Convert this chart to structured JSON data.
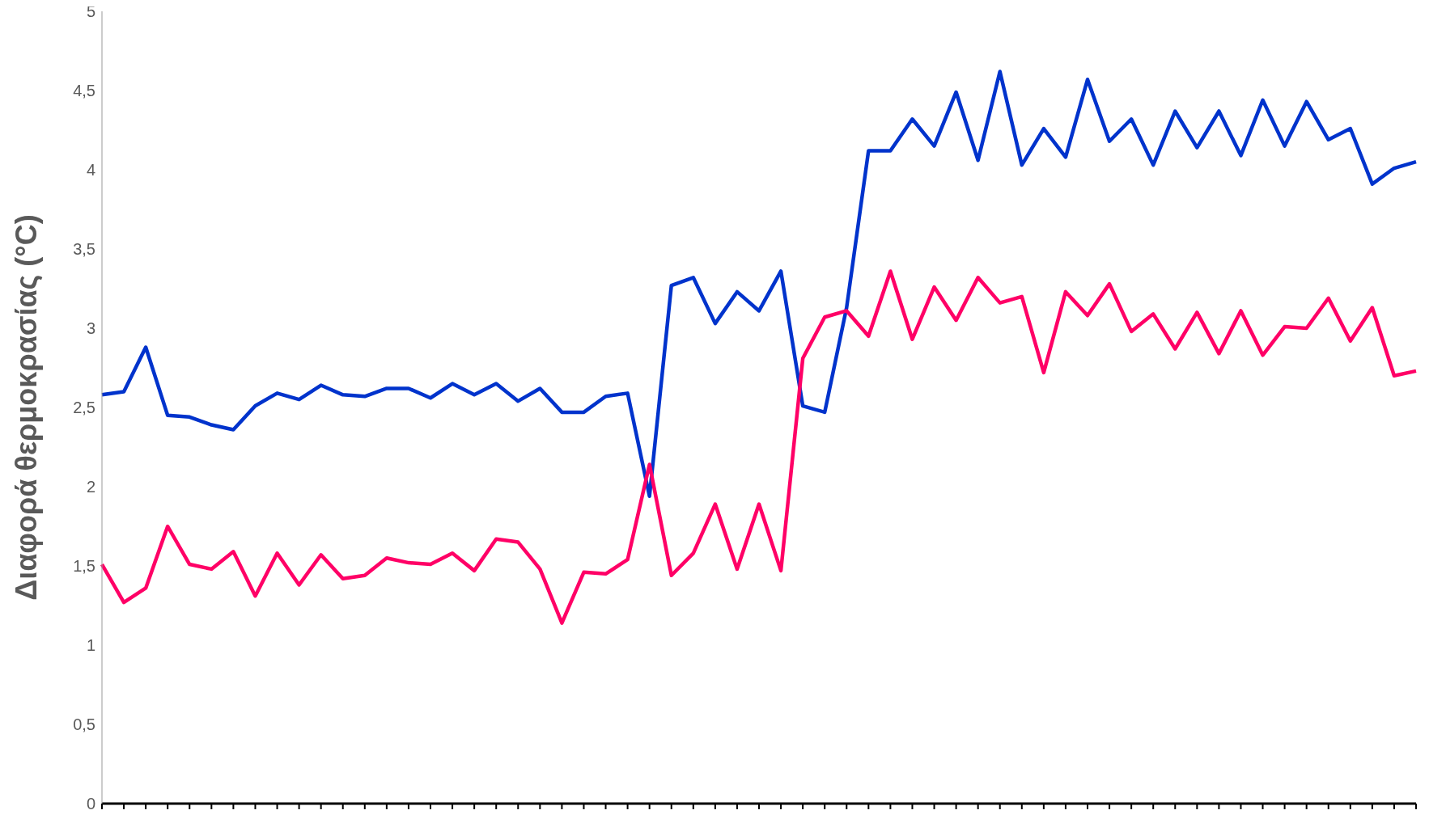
{
  "chart_data": {
    "type": "line",
    "ylabel": "Διαφορά θερμοκρασίας (°C)",
    "categories": [
      null,
      null,
      null,
      null,
      null,
      null,
      null,
      null,
      null,
      null,
      null,
      null,
      null,
      null,
      null,
      null,
      null,
      null,
      null,
      null,
      null,
      null,
      null,
      null,
      null,
      null,
      null,
      null,
      null,
      null,
      null,
      null,
      null,
      null,
      null,
      null,
      null,
      null,
      null,
      null,
      null,
      null,
      null,
      null,
      null,
      null,
      null,
      null,
      null,
      null,
      null,
      null,
      null,
      null,
      null,
      null,
      null,
      null,
      null,
      null,
      null
    ],
    "ylim": [
      0,
      5
    ],
    "yticks": [
      {
        "value": 0,
        "label": "0"
      },
      {
        "value": 0.5,
        "label": "0,5"
      },
      {
        "value": 1,
        "label": "1"
      },
      {
        "value": 1.5,
        "label": "1,5"
      },
      {
        "value": 2,
        "label": "2"
      },
      {
        "value": 2.5,
        "label": "2,5"
      },
      {
        "value": 3,
        "label": "3"
      },
      {
        "value": 3.5,
        "label": "3,5"
      },
      {
        "value": 4,
        "label": "4"
      },
      {
        "value": 4.5,
        "label": "4,5"
      },
      {
        "value": 5,
        "label": "5"
      }
    ],
    "grid": false,
    "legend": false,
    "marker": "none",
    "line_style": "solid",
    "series": [
      {
        "color": "#0033cc",
        "values": [
          2.58,
          2.6,
          2.88,
          2.45,
          2.44,
          2.39,
          2.36,
          2.51,
          2.59,
          2.55,
          2.64,
          2.58,
          2.57,
          2.62,
          2.62,
          2.56,
          2.65,
          2.58,
          2.65,
          2.54,
          2.62,
          2.47,
          2.47,
          2.57,
          2.59,
          1.94,
          3.27,
          3.32,
          3.03,
          3.23,
          3.11,
          3.36,
          2.51,
          2.47,
          3.13,
          4.12,
          4.12,
          4.32,
          4.15,
          4.49,
          4.06,
          4.62,
          4.03,
          4.26,
          4.08,
          4.57,
          4.18,
          4.32,
          4.03,
          4.37,
          4.14,
          4.37,
          4.09,
          4.44,
          4.15,
          4.43,
          4.19,
          4.26,
          3.91,
          4.01,
          4.05
        ]
      },
      {
        "color": "#ff0066",
        "values": [
          1.51,
          1.27,
          1.36,
          1.75,
          1.51,
          1.48,
          1.59,
          1.31,
          1.58,
          1.38,
          1.57,
          1.42,
          1.44,
          1.55,
          1.52,
          1.51,
          1.58,
          1.47,
          1.67,
          1.65,
          1.48,
          1.14,
          1.46,
          1.45,
          1.54,
          2.14,
          1.44,
          1.58,
          1.89,
          1.48,
          1.89,
          1.47,
          2.81,
          3.07,
          3.11,
          2.95,
          3.36,
          2.93,
          3.26,
          3.05,
          3.32,
          3.16,
          3.2,
          2.72,
          3.23,
          3.08,
          3.28,
          2.98,
          3.09,
          2.87,
          3.1,
          2.84,
          3.11,
          2.83,
          3.01,
          3,
          3.19,
          2.92,
          3.13,
          2.7,
          2.73
        ]
      }
    ]
  }
}
